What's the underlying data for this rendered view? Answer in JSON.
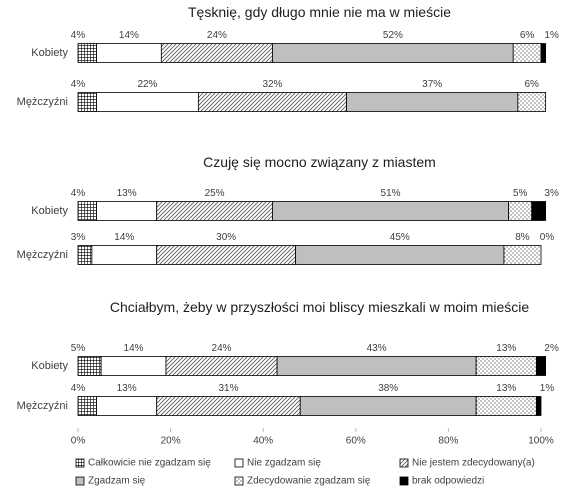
{
  "chart_data": [
    {
      "type": "bar",
      "orientation": "horizontal",
      "stacked": true,
      "title": "Tęsknię, gdy długo mnie nie ma w mieście",
      "categories": [
        "Kobiety",
        "Mężczyźni"
      ],
      "series": [
        {
          "values": [
            4,
            4
          ],
          "value_labels": [
            "4%",
            "4%"
          ]
        },
        {
          "values": [
            14,
            22
          ],
          "value_labels": [
            "14%",
            "22%"
          ]
        },
        {
          "values": [
            24,
            32
          ],
          "value_labels": [
            "24%",
            "32%"
          ]
        },
        {
          "values": [
            52,
            37
          ],
          "value_labels": [
            "52%",
            "37%"
          ]
        },
        {
          "values": [
            6,
            6
          ],
          "value_labels": [
            "6%",
            "6%"
          ]
        },
        {
          "values": [
            1,
            null
          ],
          "value_labels": [
            "1%",
            null
          ]
        }
      ]
    },
    {
      "type": "bar",
      "orientation": "horizontal",
      "stacked": true,
      "title": "Czuję się mocno związany z miastem",
      "categories": [
        "Kobiety",
        "Mężczyźni"
      ],
      "series": [
        {
          "values": [
            4,
            3
          ],
          "value_labels": [
            "4%",
            "3%"
          ]
        },
        {
          "values": [
            13,
            14
          ],
          "value_labels": [
            "13%",
            "14%"
          ]
        },
        {
          "values": [
            25,
            30
          ],
          "value_labels": [
            "25%",
            "30%"
          ]
        },
        {
          "values": [
            51,
            45
          ],
          "value_labels": [
            "51%",
            "45%"
          ]
        },
        {
          "values": [
            5,
            8
          ],
          "value_labels": [
            "5%",
            "8%"
          ]
        },
        {
          "values": [
            3,
            0
          ],
          "value_labels": [
            "3%",
            "0%"
          ]
        }
      ]
    },
    {
      "type": "bar",
      "orientation": "horizontal",
      "stacked": true,
      "title": "Chciałbym, żeby w przyszłości moi bliscy mieszkali w moim mieście",
      "categories": [
        "Kobiety",
        "Mężczyźni"
      ],
      "series": [
        {
          "values": [
            5,
            4
          ],
          "value_labels": [
            "5%",
            "4%"
          ]
        },
        {
          "values": [
            14,
            13
          ],
          "value_labels": [
            "14%",
            "13%"
          ]
        },
        {
          "values": [
            24,
            31
          ],
          "value_labels": [
            "24%",
            "31%"
          ]
        },
        {
          "values": [
            43,
            38
          ],
          "value_labels": [
            "43%",
            "38%"
          ]
        },
        {
          "values": [
            13,
            13
          ],
          "value_labels": [
            "13%",
            "13%"
          ]
        },
        {
          "values": [
            2,
            1
          ],
          "value_labels": [
            "2%",
            "1%"
          ]
        }
      ],
      "xlim": [
        0,
        100
      ],
      "xticks": [
        {
          "value": 0,
          "label": "0%"
        },
        {
          "value": 20,
          "label": "20%"
        },
        {
          "value": 40,
          "label": "40%"
        },
        {
          "value": 60,
          "label": "60%"
        },
        {
          "value": 80,
          "label": "80%"
        },
        {
          "value": 100,
          "label": "100%"
        }
      ]
    }
  ],
  "legend": {
    "position": "bottom",
    "items": [
      {
        "name": "Całkowicie nie zgadzam się",
        "color": "#ffffff",
        "pattern": "grid"
      },
      {
        "name": "Nie zgadzam się",
        "color": "#ffffff",
        "pattern": "none"
      },
      {
        "name": "Nie jestem zdecydowany(a)",
        "color": "#ffffff",
        "pattern": "hatch"
      },
      {
        "name": "Zgadzam się",
        "color": "#bfbfbf",
        "pattern": "none"
      },
      {
        "name": "Zdecydowanie zgadzam się",
        "color": "#ffffff",
        "pattern": "dots"
      },
      {
        "name": "brak odpowiedzi",
        "color": "#000000",
        "pattern": "none"
      }
    ]
  }
}
